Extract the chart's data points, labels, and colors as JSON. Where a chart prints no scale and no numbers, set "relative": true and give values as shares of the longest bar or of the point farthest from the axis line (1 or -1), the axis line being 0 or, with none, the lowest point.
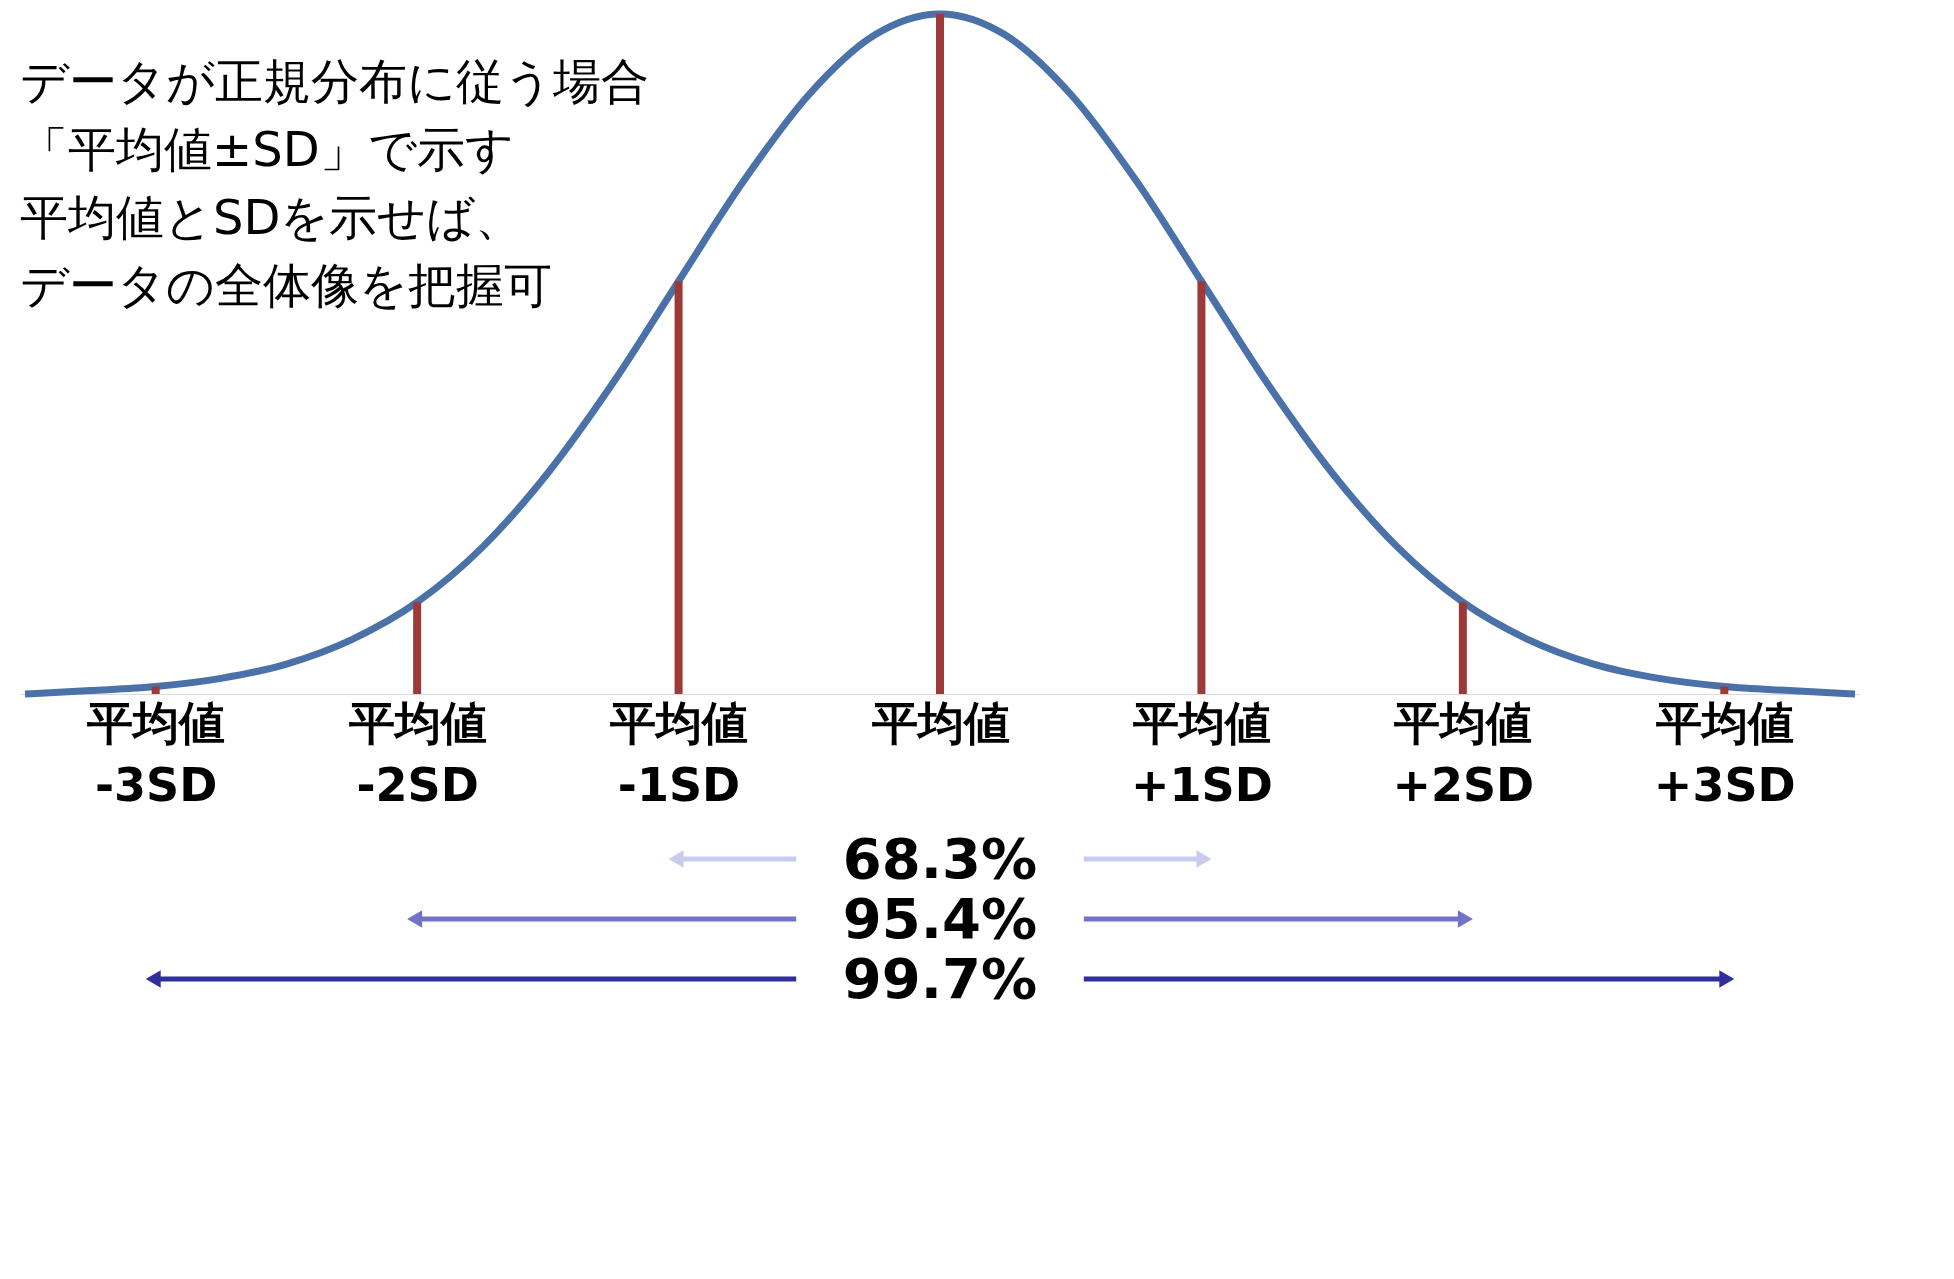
{
  "chart_data": {
    "type": "line",
    "relative": true,
    "xlim": [
      -3.5,
      3.5
    ],
    "x": [
      -3.5,
      -3.25,
      -3,
      -2.75,
      -2.5,
      -2.25,
      -2,
      -1.75,
      -1.5,
      -1.25,
      -1,
      -0.75,
      -0.5,
      -0.25,
      0,
      0.25,
      0.5,
      0.75,
      1,
      1.25,
      1.5,
      1.75,
      2,
      2.25,
      2.5,
      2.75,
      3,
      3.25,
      3.5
    ],
    "xticks": [
      {
        "value": -3,
        "label": "平均値 -3SD"
      },
      {
        "value": -2,
        "label": "平均値 -2SD"
      },
      {
        "value": -1,
        "label": "平均値 -1SD"
      },
      {
        "value": 0,
        "label": "平均値"
      },
      {
        "value": 1,
        "label": "平均値 +1SD"
      },
      {
        "value": 2,
        "label": "平均値 +2SD"
      },
      {
        "value": 3,
        "label": "平均値 +3SD"
      }
    ],
    "series": [
      {
        "color": "#4a72a8",
        "values": [
          0,
          0.005,
          0.011,
          0.023,
          0.044,
          0.08,
          0.135,
          0.216,
          0.325,
          0.458,
          0.607,
          0.755,
          0.882,
          0.969,
          1,
          0.969,
          0.882,
          0.755,
          0.607,
          0.458,
          0.325,
          0.216,
          0.135,
          0.08,
          0.044,
          0.023,
          0.011,
          0.005,
          0
        ]
      },
      {
        "type": "bar",
        "color": "#9b3a38",
        "x": [
          -3,
          -2,
          -1,
          0,
          1,
          2,
          3
        ],
        "values": [
          0.011,
          0.135,
          0.607,
          1,
          0.607,
          0.135,
          0.011
        ]
      }
    ],
    "annotations": [
      "データが正規分布に従う場合",
      "「平均値±SD」で示す",
      "平均値とSDを示せば、",
      "データの全体像を把握可",
      "68.3%",
      "95.4%",
      "99.7%"
    ],
    "grid": false,
    "marker": "none",
    "line_style": "solid"
  }
}
